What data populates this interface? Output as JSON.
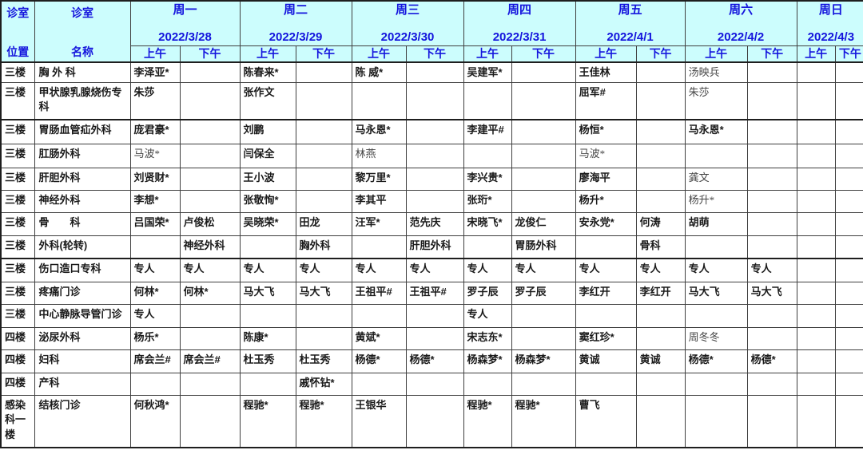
{
  "colors": {
    "header_bg": "#ccfdfd",
    "header_text": "#1414dd",
    "body_text": "#1a1a1a",
    "grid_line": "#3f3f3f"
  },
  "table": {
    "corner_location_line1": "诊室",
    "corner_location_line2": "位置",
    "corner_name_line1": "诊室",
    "corner_name_line2": "名称",
    "am_label": "上午",
    "pm_label": "下午",
    "days": [
      {
        "name": "周一",
        "date": "2022/3/28"
      },
      {
        "name": "周二",
        "date": "2022/3/29"
      },
      {
        "name": "周三",
        "date": "2022/3/30"
      },
      {
        "name": "周四",
        "date": "2022/3/31"
      },
      {
        "name": "周五",
        "date": "2022/4/1"
      },
      {
        "name": "周六",
        "date": "2022/4/2"
      },
      {
        "name": "周日",
        "date": "2022/4/3"
      }
    ],
    "rows": [
      {
        "location": "三楼",
        "dept": "胸 外 科",
        "cells": [
          "李泽亚*",
          "",
          "陈春来*",
          "",
          "陈 威*",
          "",
          "吴建军*",
          "",
          "王佳林",
          "",
          "汤映兵",
          "",
          "",
          ""
        ],
        "light": [
          10
        ]
      },
      {
        "location": "三楼",
        "dept": "甲状腺乳腺烧伤专科",
        "cells": [
          "朱莎",
          "",
          "张作文",
          "",
          "",
          "",
          "",
          "",
          "屈军#",
          "",
          "朱莎",
          "",
          "",
          ""
        ],
        "light": [
          10
        ]
      },
      {
        "location": "三楼",
        "dept": "胃肠血管疝外科",
        "cells": [
          "庞君豪*",
          "",
          "刘鹏",
          "",
          "马永恩*",
          "",
          "李建平#",
          "",
          "杨恒*",
          "",
          "马永恩*",
          "",
          "",
          ""
        ],
        "light": []
      },
      {
        "location": "三楼",
        "dept": "肛肠外科",
        "cells": [
          "马波*",
          "",
          "闫保全",
          "",
          "林燕",
          "",
          "",
          "",
          "马波*",
          "",
          "",
          "",
          "",
          ""
        ],
        "light": [
          0,
          4,
          8
        ]
      },
      {
        "location": "三楼",
        "dept": "肝胆外科",
        "cells": [
          "刘贤财*",
          "",
          "王小波",
          "",
          "黎万里*",
          "",
          "李兴贵*",
          "",
          "廖海平",
          "",
          "龚文",
          "",
          "",
          ""
        ],
        "light": [
          10
        ]
      },
      {
        "location": "三楼",
        "dept": "神经外科",
        "cells": [
          "李想*",
          "",
          "张敬恂*",
          "",
          "李其平",
          "",
          "张珩*",
          "",
          "杨升*",
          "",
          "杨升*",
          "",
          "",
          ""
        ],
        "light": [
          10
        ]
      },
      {
        "location": "三楼",
        "dept": "骨　　科",
        "cells": [
          "吕国荣*",
          "卢俊松",
          "吴晓荣*",
          "田龙",
          "汪军*",
          "范先庆",
          "宋晓飞*",
          "龙俊仁",
          "安永党*",
          "何涛",
          "胡萌",
          "",
          "",
          ""
        ],
        "light": []
      },
      {
        "location": "三楼",
        "dept": "外科(轮转)",
        "cells": [
          "",
          "神经外科",
          "",
          "胸外科",
          "",
          "肝胆外科",
          "",
          "胃肠外科",
          "",
          "骨科",
          "",
          "",
          "",
          ""
        ],
        "light": []
      },
      {
        "location": "三楼",
        "dept": "伤口造口专科",
        "cells": [
          "专人",
          "专人",
          "专人",
          "专人",
          "专人",
          "专人",
          "专人",
          "专人",
          "专人",
          "专人",
          "专人",
          "专人",
          "",
          ""
        ],
        "light": []
      },
      {
        "location": "三楼",
        "dept": "疼痛门诊",
        "cells": [
          "何林*",
          "何林*",
          "马大飞",
          "马大飞",
          "王祖平#",
          "王祖平#",
          "罗子辰",
          "罗子辰",
          "李红开",
          "李红开",
          "马大飞",
          "马大飞",
          "",
          ""
        ],
        "light": []
      },
      {
        "location": "三楼",
        "dept": "中心静脉导管门诊",
        "cells": [
          "专人",
          "",
          "",
          "",
          "",
          "",
          "专人",
          "",
          "",
          "",
          "",
          "",
          "",
          ""
        ],
        "light": []
      },
      {
        "location": "四楼",
        "dept": "泌尿外科",
        "cells": [
          "杨乐*",
          "",
          "陈康*",
          "",
          "黄斌*",
          "",
          "宋志东*",
          "",
          "窦红珍*",
          "",
          "周冬冬",
          "",
          "",
          ""
        ],
        "light": [
          10
        ]
      },
      {
        "location": "四楼",
        "dept": "妇科",
        "cells": [
          "席会兰#",
          "席会兰#",
          "杜玉秀",
          "杜玉秀",
          "杨德*",
          "杨德*",
          "杨森梦*",
          "杨森梦*",
          "黄诚",
          "黄诚",
          "杨德*",
          "杨德*",
          "",
          ""
        ],
        "light": []
      },
      {
        "location": "四楼",
        "dept": "产科",
        "cells": [
          "",
          "",
          "",
          "戚怀钻*",
          "",
          "",
          "",
          "",
          "",
          "",
          "",
          "",
          "",
          ""
        ],
        "light": []
      },
      {
        "location": "感染科一楼",
        "dept": "结核门诊",
        "cells": [
          "何秋鸿*",
          "",
          "程驰*",
          "程驰*",
          "王银华",
          "",
          "程驰*",
          "程驰*",
          "曹飞",
          "",
          "",
          "",
          "",
          ""
        ],
        "light": []
      }
    ]
  }
}
